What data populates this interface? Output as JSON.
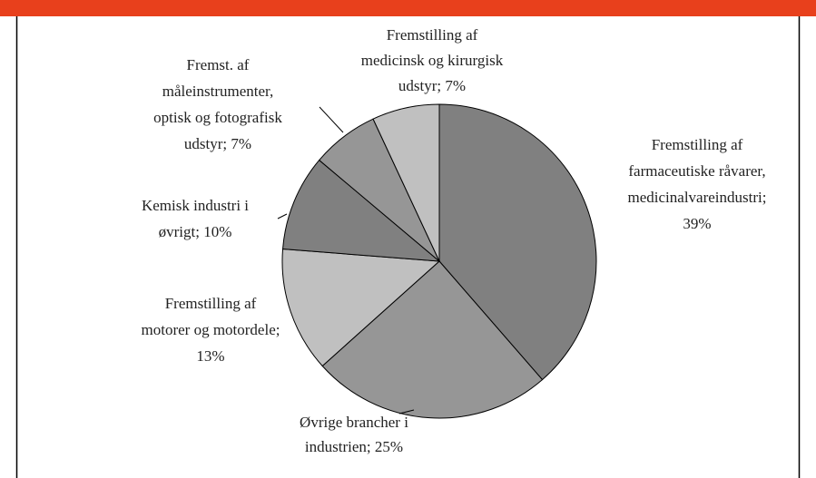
{
  "chart_data": {
    "type": "pie",
    "labels": [
      [
        "Fremstilling af",
        "farmaceutiske råvarer,",
        "medicinalvareindustri;",
        "39%"
      ],
      [
        "Øvrige brancher i",
        "industrien; 25%"
      ],
      [
        "Fremstilling af",
        "motorer og motordele;",
        "13%"
      ],
      [
        "Kemisk industri i",
        "øvrigt; 10%"
      ],
      [
        "Fremst. af",
        "måleinstrumenter,",
        "optisk og fotografisk",
        "udstyr; 7%"
      ],
      [
        "Fremstilling af",
        "medicinsk og kirurgisk",
        "udstyr; 7%"
      ]
    ],
    "values": [
      39,
      25,
      13,
      10,
      7,
      7
    ],
    "colors": [
      "#808080",
      "#969696",
      "#c0c0c0",
      "#808080",
      "#969696",
      "#c0c0c0"
    ]
  }
}
